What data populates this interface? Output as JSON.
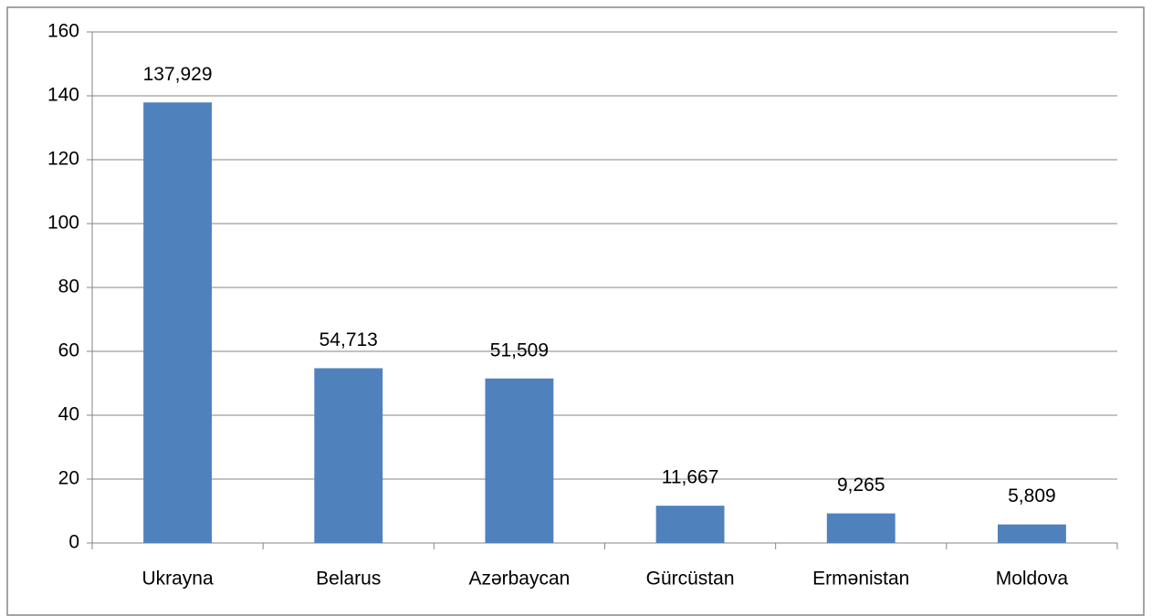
{
  "chart_data": {
    "type": "bar",
    "categories": [
      "Ukrayna",
      "Belarus",
      "Azərbaycan",
      "Gürcüstan",
      "Ermənistan",
      "Moldova"
    ],
    "values": [
      137.929,
      54.713,
      51.509,
      11.667,
      9.265,
      5.809
    ],
    "value_labels": [
      "137,929",
      "54,713",
      "51,509",
      "11,667",
      "9,265",
      "5,809"
    ],
    "color": "#4f81bd",
    "ylim": [
      0,
      160
    ],
    "yticks": [
      0,
      20,
      40,
      60,
      80,
      100,
      120,
      140,
      160
    ],
    "grid": true
  }
}
